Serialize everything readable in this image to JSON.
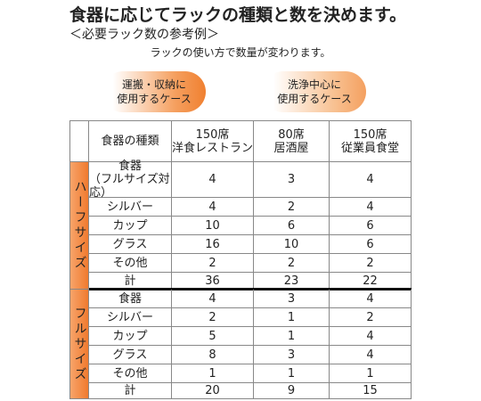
{
  "header": {
    "title": "食器に応じてラックの種類と数を決めます。",
    "subtitle": "＜必要ラック数の参考例＞",
    "note": "ラックの使い方で数量が変わります。"
  },
  "buttons": [
    {
      "lines": [
        "運搬・収納に",
        "使用するケース"
      ]
    },
    {
      "lines": [
        "洗浄中心に",
        "使用するケース"
      ]
    }
  ],
  "table": {
    "columns": [
      {
        "lines": [
          "食器の種類"
        ]
      },
      {
        "lines": [
          "150席",
          "洋食レストラン"
        ]
      },
      {
        "lines": [
          "80席",
          "居酒屋"
        ]
      },
      {
        "lines": [
          "150席",
          "従業員食堂"
        ]
      }
    ],
    "groups": [
      {
        "label": "ハーフサイズ",
        "rows": [
          {
            "item": [
              "食器",
              "（フルサイズ対応）"
            ],
            "values": [
              4,
              3,
              4
            ]
          },
          {
            "item": [
              "シルバー"
            ],
            "values": [
              4,
              2,
              4
            ]
          },
          {
            "item": [
              "カップ"
            ],
            "values": [
              10,
              6,
              6
            ]
          },
          {
            "item": [
              "グラス"
            ],
            "values": [
              16,
              10,
              6
            ]
          },
          {
            "item": [
              "その他"
            ],
            "values": [
              2,
              2,
              2
            ]
          },
          {
            "item": [
              "計"
            ],
            "values": [
              36,
              23,
              22
            ]
          }
        ]
      },
      {
        "label": "フルサイズ",
        "rows": [
          {
            "item": [
              "食器"
            ],
            "values": [
              4,
              3,
              4
            ]
          },
          {
            "item": [
              "シルバー"
            ],
            "values": [
              2,
              1,
              2
            ]
          },
          {
            "item": [
              "カップ"
            ],
            "values": [
              5,
              1,
              4
            ]
          },
          {
            "item": [
              "グラス"
            ],
            "values": [
              8,
              3,
              4
            ]
          },
          {
            "item": [
              "その他"
            ],
            "values": [
              1,
              1,
              1
            ]
          },
          {
            "item": [
              "計"
            ],
            "values": [
              20,
              9,
              15
            ]
          }
        ]
      }
    ]
  }
}
